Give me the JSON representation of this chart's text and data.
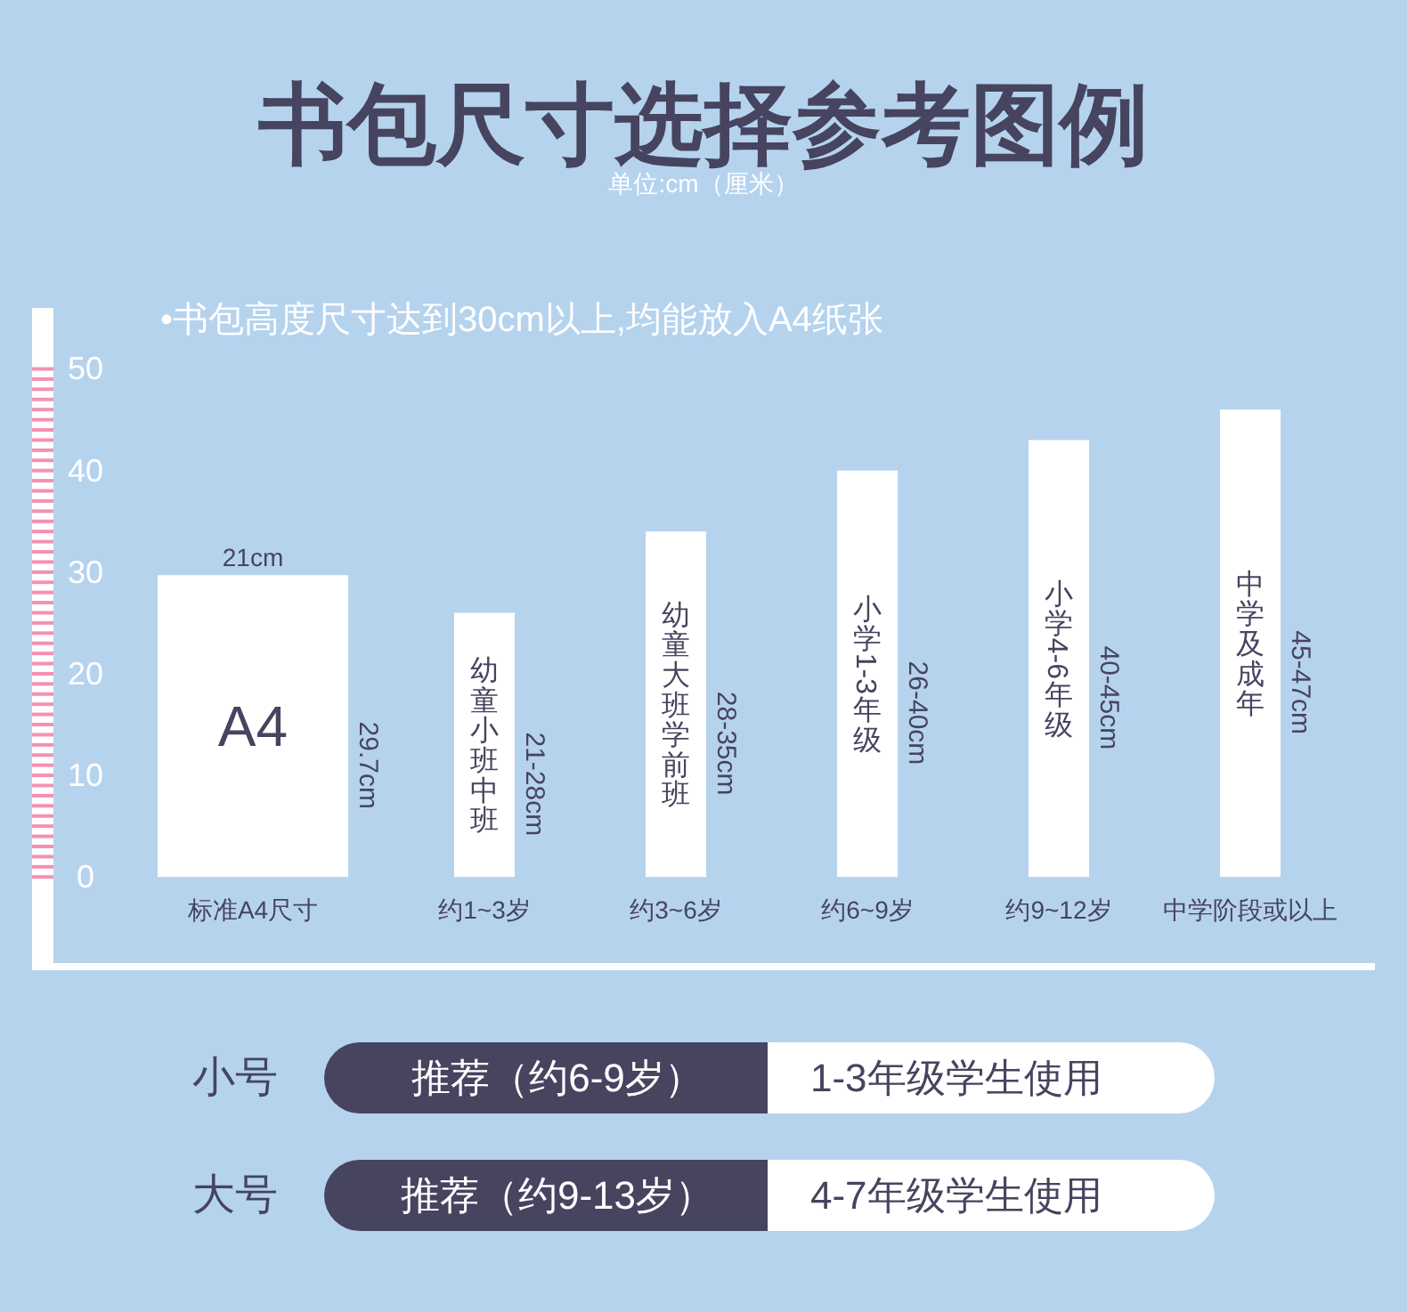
{
  "chart_data": [
    {
      "type": "bar",
      "title": "书包尺寸选择参考图例",
      "subtitle": "单位:cm（厘米）",
      "categories": [
        "标准A4尺寸",
        "约1~3岁",
        "约3~6岁",
        "约6~9岁",
        "约9~12岁",
        "中学阶段或以上"
      ],
      "series": [
        {
          "color": "#ffffff",
          "values": [
            29.7,
            26,
            34,
            40,
            43,
            46
          ],
          "value_labels": [
            "29.7cm",
            "21-28cm",
            "28-35cm",
            "26-40cm",
            "40-45cm",
            "45-47cm"
          ]
        }
      ],
      "ylim": [
        -9,
        56
      ],
      "yticks": [
        0,
        {
          "value": 1,
          "label": null
        },
        {
          "value": 2,
          "label": null
        },
        {
          "value": 3,
          "label": null
        },
        {
          "value": 4,
          "label": null
        },
        {
          "value": 5,
          "label": null
        },
        {
          "value": 6,
          "label": null
        },
        {
          "value": 7,
          "label": null
        },
        {
          "value": 8,
          "label": null
        },
        {
          "value": 9,
          "label": null
        },
        10,
        {
          "value": 11,
          "label": null
        },
        {
          "value": 12,
          "label": null
        },
        {
          "value": 13,
          "label": null
        },
        {
          "value": 14,
          "label": null
        },
        {
          "value": 15,
          "label": null
        },
        {
          "value": 16,
          "label": null
        },
        {
          "value": 17,
          "label": null
        },
        {
          "value": 18,
          "label": null
        },
        {
          "value": 19,
          "label": null
        },
        20,
        {
          "value": 21,
          "label": null
        },
        {
          "value": 22,
          "label": null
        },
        {
          "value": 23,
          "label": null
        },
        {
          "value": 24,
          "label": null
        },
        {
          "value": 25,
          "label": null
        },
        {
          "value": 26,
          "label": null
        },
        {
          "value": 27,
          "label": null
        },
        {
          "value": 28,
          "label": null
        },
        {
          "value": 29,
          "label": null
        },
        30,
        {
          "value": 31,
          "label": null
        },
        {
          "value": 32,
          "label": null
        },
        {
          "value": 33,
          "label": null
        },
        {
          "value": 34,
          "label": null
        },
        {
          "value": 35,
          "label": null
        },
        {
          "value": 36,
          "label": null
        },
        {
          "value": 37,
          "label": null
        },
        {
          "value": 38,
          "label": null
        },
        {
          "value": 39,
          "label": null
        },
        40,
        {
          "value": 41,
          "label": null
        },
        {
          "value": 42,
          "label": null
        },
        {
          "value": 43,
          "label": null
        },
        {
          "value": 44,
          "label": null
        },
        {
          "value": 45,
          "label": null
        },
        {
          "value": 46,
          "label": null
        },
        {
          "value": 47,
          "label": null
        },
        {
          "value": 48,
          "label": null
        },
        {
          "value": 49,
          "label": null
        },
        50
      ],
      "annotations": [
        "•书包高度尺寸达到30cm以上,均能放入A4纸张",
        {
          "text": "21cm",
          "x": "标准A4尺寸",
          "y": 29.7
        },
        "A4",
        "幼童小班中班",
        "幼童大班学前班",
        "小学1-3年级",
        "小学4-6年级",
        "中学及成年"
      ]
    },
    {
      "type": "other",
      "annotations": [
        "小号",
        "推荐（约6-9岁）",
        "1-3年级学生使用",
        "大号",
        "推荐（约9-13岁）",
        "4-7年级学生使用"
      ]
    }
  ]
}
